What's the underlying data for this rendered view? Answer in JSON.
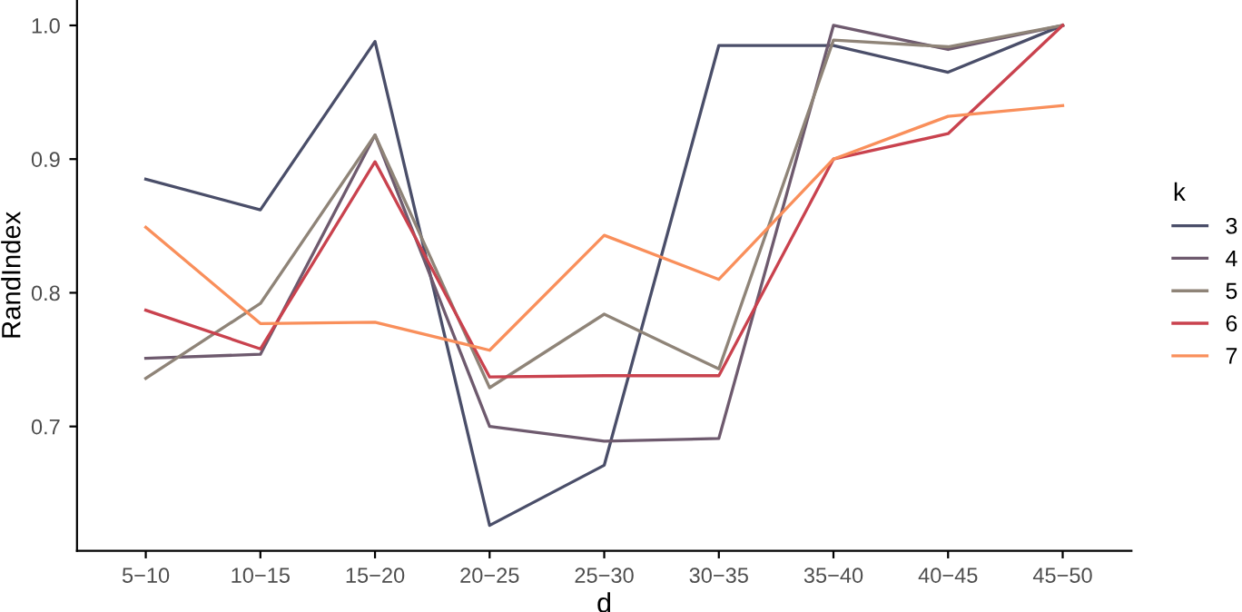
{
  "chart_data": {
    "type": "line",
    "xlabel": "d",
    "ylabel": "RandIndex",
    "legend_title": "k",
    "legend": "right",
    "grid": false,
    "categories": [
      "5−10",
      "10−15",
      "15−20",
      "20−25",
      "25−30",
      "30−35",
      "35−40",
      "40−45",
      "45−50"
    ],
    "ylim": [
      0.607,
      1.019
    ],
    "yticks": [
      0.7,
      0.8,
      0.9,
      {
        "value": 1.0,
        "label": "1.0"
      }
    ],
    "series": [
      {
        "name": "3",
        "color": "#4a4e69",
        "values": [
          0.885,
          0.862,
          0.988,
          0.626,
          0.671,
          0.985,
          0.985,
          0.965,
          1.0
        ]
      },
      {
        "name": "4",
        "color": "#6e5a6e",
        "values": [
          0.751,
          0.754,
          0.918,
          0.7,
          0.689,
          0.691,
          1.0,
          0.982,
          1.0
        ]
      },
      {
        "name": "5",
        "color": "#8f8478",
        "values": [
          0.736,
          0.792,
          0.918,
          0.729,
          0.784,
          0.743,
          0.989,
          0.984,
          1.0
        ]
      },
      {
        "name": "6",
        "color": "#c9424e",
        "values": [
          0.787,
          0.758,
          0.898,
          0.737,
          0.738,
          0.738,
          0.9,
          0.919,
          1.0
        ]
      },
      {
        "name": "7",
        "color": "#f98f5b",
        "values": [
          0.849,
          0.777,
          0.778,
          0.757,
          0.843,
          0.81,
          0.9,
          0.932,
          0.94
        ]
      }
    ]
  }
}
